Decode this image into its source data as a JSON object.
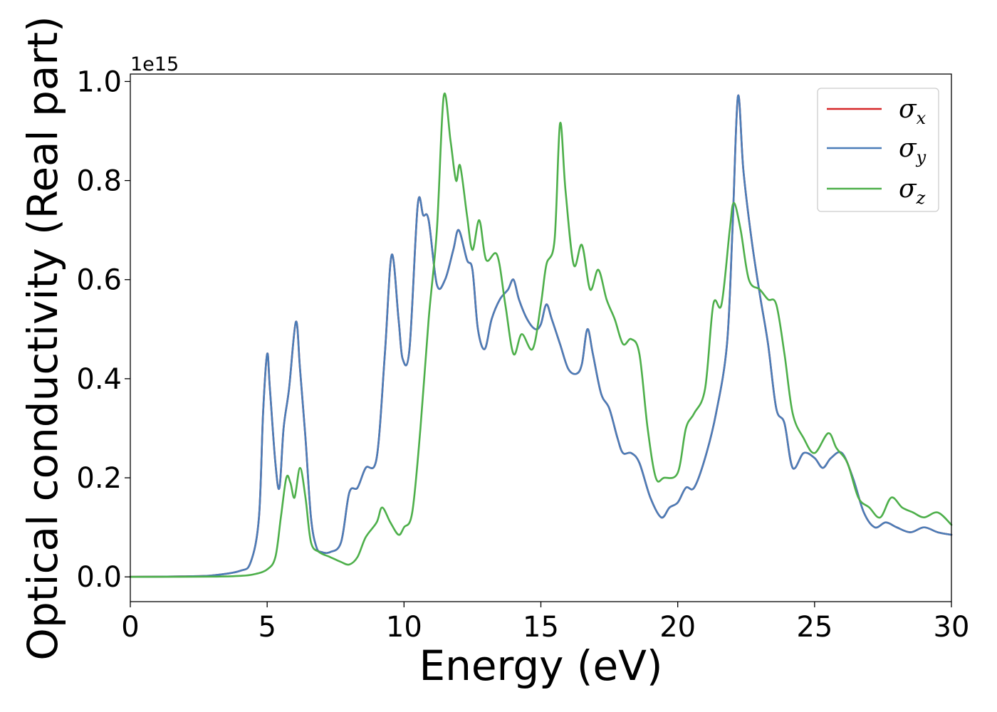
{
  "chart_data": {
    "type": "line",
    "xlabel": "Energy (eV)",
    "ylabel": "Optical conductivity (Real part)",
    "y_offset_label": "1e15",
    "xlim": [
      0,
      30
    ],
    "ylim": [
      -0.05,
      1.015
    ],
    "x_ticks": [
      "0",
      "5",
      "10",
      "15",
      "20",
      "25",
      "30"
    ],
    "y_ticks": [
      "0.0",
      "0.2",
      "0.4",
      "0.6",
      "0.8",
      "1.0"
    ],
    "grid": false,
    "legend_position": "top-right",
    "series": [
      {
        "name": "σx",
        "symbol": "σ",
        "subscript": "x",
        "color": "#d62728",
        "points": [
          [
            0,
            0
          ],
          [
            2,
            0.001
          ],
          [
            3,
            0.003
          ],
          [
            4,
            0.012
          ],
          [
            4.4,
            0.03
          ],
          [
            4.7,
            0.12
          ],
          [
            4.85,
            0.33
          ],
          [
            5.0,
            0.45
          ],
          [
            5.1,
            0.38
          ],
          [
            5.3,
            0.23
          ],
          [
            5.45,
            0.18
          ],
          [
            5.6,
            0.3
          ],
          [
            5.8,
            0.38
          ],
          [
            6.05,
            0.515
          ],
          [
            6.2,
            0.42
          ],
          [
            6.4,
            0.28
          ],
          [
            6.6,
            0.12
          ],
          [
            6.8,
            0.06
          ],
          [
            7.0,
            0.05
          ],
          [
            7.3,
            0.05
          ],
          [
            7.7,
            0.07
          ],
          [
            8.0,
            0.17
          ],
          [
            8.3,
            0.18
          ],
          [
            8.6,
            0.22
          ],
          [
            9.0,
            0.24
          ],
          [
            9.3,
            0.45
          ],
          [
            9.55,
            0.65
          ],
          [
            9.8,
            0.52
          ],
          [
            9.95,
            0.44
          ],
          [
            10.2,
            0.46
          ],
          [
            10.5,
            0.75
          ],
          [
            10.7,
            0.73
          ],
          [
            10.9,
            0.72
          ],
          [
            11.2,
            0.59
          ],
          [
            11.5,
            0.6
          ],
          [
            11.8,
            0.66
          ],
          [
            12.0,
            0.7
          ],
          [
            12.3,
            0.64
          ],
          [
            12.5,
            0.62
          ],
          [
            12.7,
            0.5
          ],
          [
            12.95,
            0.46
          ],
          [
            13.2,
            0.52
          ],
          [
            13.5,
            0.56
          ],
          [
            13.8,
            0.58
          ],
          [
            14.0,
            0.6
          ],
          [
            14.2,
            0.56
          ],
          [
            14.5,
            0.52
          ],
          [
            14.8,
            0.5
          ],
          [
            15.0,
            0.51
          ],
          [
            15.2,
            0.55
          ],
          [
            15.4,
            0.52
          ],
          [
            15.7,
            0.47
          ],
          [
            16.0,
            0.42
          ],
          [
            16.3,
            0.41
          ],
          [
            16.5,
            0.43
          ],
          [
            16.7,
            0.5
          ],
          [
            16.9,
            0.45
          ],
          [
            17.2,
            0.37
          ],
          [
            17.5,
            0.34
          ],
          [
            17.8,
            0.28
          ],
          [
            18.0,
            0.25
          ],
          [
            18.3,
            0.25
          ],
          [
            18.6,
            0.23
          ],
          [
            19.0,
            0.16
          ],
          [
            19.4,
            0.12
          ],
          [
            19.7,
            0.14
          ],
          [
            20.0,
            0.15
          ],
          [
            20.3,
            0.18
          ],
          [
            20.6,
            0.18
          ],
          [
            21.0,
            0.24
          ],
          [
            21.4,
            0.33
          ],
          [
            21.8,
            0.47
          ],
          [
            22.0,
            0.7
          ],
          [
            22.2,
            0.97
          ],
          [
            22.4,
            0.82
          ],
          [
            22.7,
            0.68
          ],
          [
            23.0,
            0.57
          ],
          [
            23.3,
            0.47
          ],
          [
            23.6,
            0.34
          ],
          [
            23.9,
            0.31
          ],
          [
            24.2,
            0.22
          ],
          [
            24.6,
            0.25
          ],
          [
            25.0,
            0.24
          ],
          [
            25.3,
            0.22
          ],
          [
            25.6,
            0.24
          ],
          [
            26.0,
            0.25
          ],
          [
            26.4,
            0.2
          ],
          [
            26.8,
            0.13
          ],
          [
            27.2,
            0.1
          ],
          [
            27.6,
            0.11
          ],
          [
            28.0,
            0.1
          ],
          [
            28.5,
            0.09
          ],
          [
            29.0,
            0.1
          ],
          [
            29.5,
            0.09
          ],
          [
            30,
            0.085
          ]
        ]
      },
      {
        "name": "σy",
        "symbol": "σ",
        "subscript": "y",
        "color": "#4a7db8",
        "points": [
          [
            0,
            0
          ],
          [
            2,
            0.001
          ],
          [
            3,
            0.003
          ],
          [
            4,
            0.012
          ],
          [
            4.4,
            0.03
          ],
          [
            4.7,
            0.12
          ],
          [
            4.85,
            0.33
          ],
          [
            5.0,
            0.45
          ],
          [
            5.1,
            0.38
          ],
          [
            5.3,
            0.23
          ],
          [
            5.45,
            0.18
          ],
          [
            5.6,
            0.3
          ],
          [
            5.8,
            0.38
          ],
          [
            6.05,
            0.515
          ],
          [
            6.2,
            0.42
          ],
          [
            6.4,
            0.28
          ],
          [
            6.6,
            0.12
          ],
          [
            6.8,
            0.06
          ],
          [
            7.0,
            0.05
          ],
          [
            7.3,
            0.05
          ],
          [
            7.7,
            0.07
          ],
          [
            8.0,
            0.17
          ],
          [
            8.3,
            0.18
          ],
          [
            8.6,
            0.22
          ],
          [
            9.0,
            0.24
          ],
          [
            9.3,
            0.45
          ],
          [
            9.55,
            0.65
          ],
          [
            9.8,
            0.52
          ],
          [
            9.95,
            0.44
          ],
          [
            10.2,
            0.46
          ],
          [
            10.5,
            0.75
          ],
          [
            10.7,
            0.73
          ],
          [
            10.9,
            0.72
          ],
          [
            11.2,
            0.59
          ],
          [
            11.5,
            0.6
          ],
          [
            11.8,
            0.66
          ],
          [
            12.0,
            0.7
          ],
          [
            12.3,
            0.64
          ],
          [
            12.5,
            0.62
          ],
          [
            12.7,
            0.5
          ],
          [
            12.95,
            0.46
          ],
          [
            13.2,
            0.52
          ],
          [
            13.5,
            0.56
          ],
          [
            13.8,
            0.58
          ],
          [
            14.0,
            0.6
          ],
          [
            14.2,
            0.56
          ],
          [
            14.5,
            0.52
          ],
          [
            14.8,
            0.5
          ],
          [
            15.0,
            0.51
          ],
          [
            15.2,
            0.55
          ],
          [
            15.4,
            0.52
          ],
          [
            15.7,
            0.47
          ],
          [
            16.0,
            0.42
          ],
          [
            16.3,
            0.41
          ],
          [
            16.5,
            0.43
          ],
          [
            16.7,
            0.5
          ],
          [
            16.9,
            0.45
          ],
          [
            17.2,
            0.37
          ],
          [
            17.5,
            0.34
          ],
          [
            17.8,
            0.28
          ],
          [
            18.0,
            0.25
          ],
          [
            18.3,
            0.25
          ],
          [
            18.6,
            0.23
          ],
          [
            19.0,
            0.16
          ],
          [
            19.4,
            0.12
          ],
          [
            19.7,
            0.14
          ],
          [
            20.0,
            0.15
          ],
          [
            20.3,
            0.18
          ],
          [
            20.6,
            0.18
          ],
          [
            21.0,
            0.24
          ],
          [
            21.4,
            0.33
          ],
          [
            21.8,
            0.47
          ],
          [
            22.0,
            0.7
          ],
          [
            22.2,
            0.97
          ],
          [
            22.4,
            0.82
          ],
          [
            22.7,
            0.68
          ],
          [
            23.0,
            0.57
          ],
          [
            23.3,
            0.47
          ],
          [
            23.6,
            0.34
          ],
          [
            23.9,
            0.31
          ],
          [
            24.2,
            0.22
          ],
          [
            24.6,
            0.25
          ],
          [
            25.0,
            0.24
          ],
          [
            25.3,
            0.22
          ],
          [
            25.6,
            0.24
          ],
          [
            26.0,
            0.25
          ],
          [
            26.4,
            0.2
          ],
          [
            26.8,
            0.13
          ],
          [
            27.2,
            0.1
          ],
          [
            27.6,
            0.11
          ],
          [
            28.0,
            0.1
          ],
          [
            28.5,
            0.09
          ],
          [
            29.0,
            0.1
          ],
          [
            29.5,
            0.09
          ],
          [
            30,
            0.085
          ]
        ]
      },
      {
        "name": "σz",
        "symbol": "σ",
        "subscript": "z",
        "color": "#4daf4a",
        "points": [
          [
            0,
            0
          ],
          [
            3,
            0.0005
          ],
          [
            4,
            0.002
          ],
          [
            4.5,
            0.005
          ],
          [
            5.0,
            0.015
          ],
          [
            5.3,
            0.04
          ],
          [
            5.5,
            0.12
          ],
          [
            5.7,
            0.2
          ],
          [
            5.85,
            0.19
          ],
          [
            6.0,
            0.16
          ],
          [
            6.2,
            0.22
          ],
          [
            6.4,
            0.16
          ],
          [
            6.6,
            0.07
          ],
          [
            6.9,
            0.05
          ],
          [
            7.3,
            0.04
          ],
          [
            7.7,
            0.03
          ],
          [
            8.0,
            0.025
          ],
          [
            8.3,
            0.04
          ],
          [
            8.6,
            0.08
          ],
          [
            9.0,
            0.11
          ],
          [
            9.2,
            0.14
          ],
          [
            9.5,
            0.11
          ],
          [
            9.8,
            0.085
          ],
          [
            10.0,
            0.1
          ],
          [
            10.3,
            0.13
          ],
          [
            10.6,
            0.3
          ],
          [
            10.9,
            0.52
          ],
          [
            11.2,
            0.7
          ],
          [
            11.45,
            0.97
          ],
          [
            11.7,
            0.88
          ],
          [
            11.9,
            0.8
          ],
          [
            12.05,
            0.83
          ],
          [
            12.3,
            0.73
          ],
          [
            12.5,
            0.66
          ],
          [
            12.75,
            0.72
          ],
          [
            13.0,
            0.64
          ],
          [
            13.4,
            0.65
          ],
          [
            13.7,
            0.55
          ],
          [
            14.0,
            0.45
          ],
          [
            14.3,
            0.49
          ],
          [
            14.7,
            0.46
          ],
          [
            15.0,
            0.55
          ],
          [
            15.2,
            0.63
          ],
          [
            15.5,
            0.68
          ],
          [
            15.7,
            0.915
          ],
          [
            15.9,
            0.78
          ],
          [
            16.2,
            0.63
          ],
          [
            16.5,
            0.67
          ],
          [
            16.8,
            0.58
          ],
          [
            17.1,
            0.62
          ],
          [
            17.4,
            0.56
          ],
          [
            17.7,
            0.52
          ],
          [
            18.0,
            0.47
          ],
          [
            18.3,
            0.48
          ],
          [
            18.6,
            0.45
          ],
          [
            18.9,
            0.3
          ],
          [
            19.2,
            0.2
          ],
          [
            19.5,
            0.2
          ],
          [
            20.0,
            0.21
          ],
          [
            20.3,
            0.3
          ],
          [
            20.6,
            0.33
          ],
          [
            21.0,
            0.38
          ],
          [
            21.3,
            0.55
          ],
          [
            21.6,
            0.55
          ],
          [
            21.9,
            0.7
          ],
          [
            22.05,
            0.755
          ],
          [
            22.3,
            0.7
          ],
          [
            22.6,
            0.6
          ],
          [
            23.0,
            0.58
          ],
          [
            23.3,
            0.56
          ],
          [
            23.6,
            0.55
          ],
          [
            23.9,
            0.45
          ],
          [
            24.2,
            0.33
          ],
          [
            24.6,
            0.28
          ],
          [
            25.0,
            0.25
          ],
          [
            25.5,
            0.29
          ],
          [
            25.8,
            0.26
          ],
          [
            26.2,
            0.23
          ],
          [
            26.6,
            0.16
          ],
          [
            27.0,
            0.14
          ],
          [
            27.4,
            0.12
          ],
          [
            27.8,
            0.16
          ],
          [
            28.2,
            0.14
          ],
          [
            28.6,
            0.13
          ],
          [
            29.0,
            0.12
          ],
          [
            29.5,
            0.13
          ],
          [
            30,
            0.105
          ]
        ]
      }
    ]
  }
}
